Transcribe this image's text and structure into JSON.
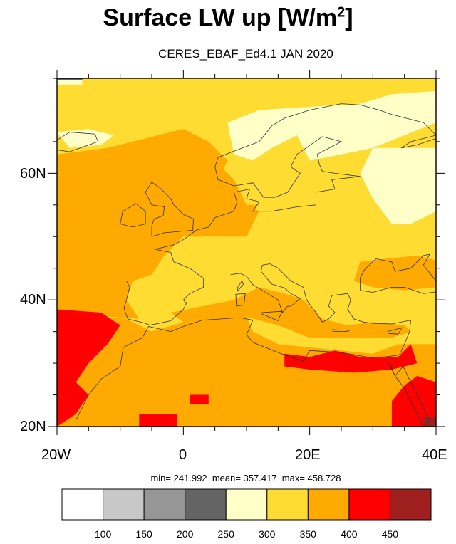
{
  "title": {
    "main": "Surface LW up [W/m",
    "sup": "2",
    "close": "]"
  },
  "subtitle": "CERES_EBAF_Ed4.1 JAN 2020",
  "axes": {
    "x_ticks": [
      "20W",
      "0",
      "20E",
      "40E"
    ],
    "y_ticks": [
      "20N",
      "40N",
      "60N"
    ]
  },
  "stats": {
    "text": "min= 241.992  mean= 357.417  max= 458.728",
    "min": 241.992,
    "mean": 357.417,
    "max": 458.728
  },
  "colorbar": {
    "labels": [
      "100",
      "150",
      "200",
      "250",
      "300",
      "350",
      "400",
      "450"
    ],
    "colors": [
      "#ffffff",
      "#c8c8c8",
      "#969696",
      "#646464",
      "#ffffc8",
      "#ffdc32",
      "#ffaa00",
      "#ff0000",
      "#a02020"
    ]
  },
  "map": {
    "lon_range": [
      -20,
      40
    ],
    "lat_range": [
      20,
      75
    ],
    "background_level": "#ffdc32"
  }
}
